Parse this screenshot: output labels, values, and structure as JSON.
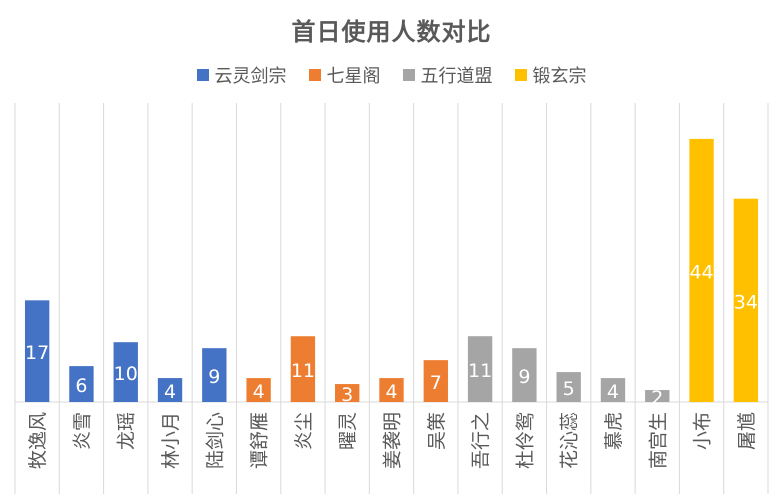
{
  "chart_data": {
    "type": "bar",
    "title": "首日使用人数对比",
    "categories": [
      "牧逸风",
      "炎雪",
      "龙瑶",
      "林小月",
      "陆剑心",
      "谭舒雁",
      "炎尘",
      "曜灵",
      "姜袭明",
      "吴策",
      "吾行之",
      "杜伶鸳",
      "花沁蕊",
      "慕虎",
      "南宫生",
      "小布",
      "屠馗"
    ],
    "values": [
      17,
      6,
      10,
      4,
      9,
      4,
      11,
      3,
      4,
      7,
      11,
      9,
      5,
      4,
      2,
      44,
      34
    ],
    "groups": [
      "云灵剑宗",
      "云灵剑宗",
      "云灵剑宗",
      "云灵剑宗",
      "云灵剑宗",
      "七星阁",
      "七星阁",
      "七星阁",
      "七星阁",
      "七星阁",
      "五行道盟",
      "五行道盟",
      "五行道盟",
      "五行道盟",
      "五行道盟",
      "锻玄宗",
      "锻玄宗"
    ],
    "legend": [
      {
        "name": "云灵剑宗",
        "color": "#4472C4"
      },
      {
        "name": "七星阁",
        "color": "#ED7D31"
      },
      {
        "name": "五行道盟",
        "color": "#A5A5A5"
      },
      {
        "name": "锻玄宗",
        "color": "#FFC000"
      }
    ],
    "legend_position": "top",
    "ylim": [
      0,
      50
    ],
    "grid": "vertical category separators"
  }
}
